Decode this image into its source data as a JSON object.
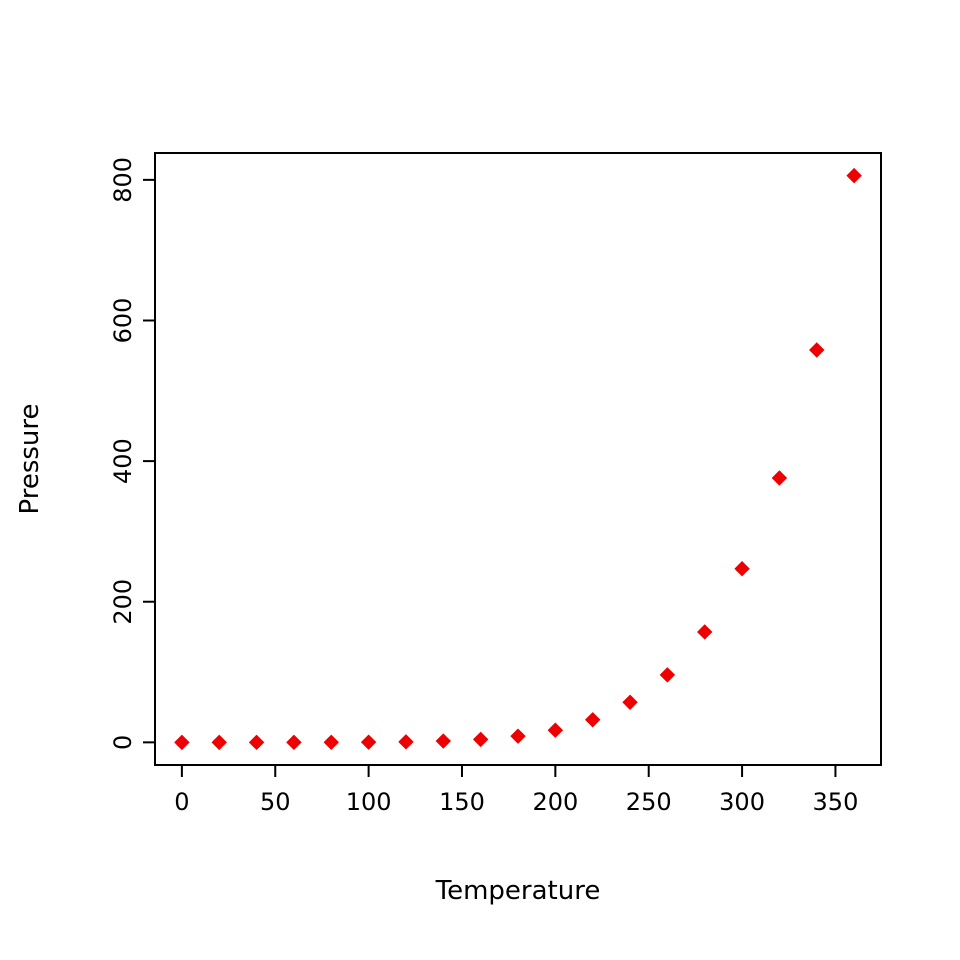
{
  "chart_data": {
    "type": "scatter",
    "title": "",
    "xlabel": "Temperature",
    "ylabel": "Pressure",
    "x": [
      0,
      20,
      40,
      60,
      80,
      100,
      120,
      140,
      160,
      180,
      200,
      220,
      240,
      260,
      280,
      300,
      320,
      340,
      360
    ],
    "y": [
      0.0002,
      0.0012,
      0.006,
      0.03,
      0.09,
      0.27,
      0.75,
      1.85,
      4.2,
      8.8,
      17.3,
      32.1,
      57,
      96,
      157,
      247,
      376,
      558,
      806
    ],
    "xticks": [
      0,
      50,
      100,
      150,
      200,
      250,
      300,
      350
    ],
    "yticks": [
      0,
      200,
      400,
      600,
      800
    ],
    "xlim": [
      -14.4,
      374.4
    ],
    "ylim": [
      -32.2,
      838.2
    ],
    "marker": "diamond",
    "marker_color": "#ee0000",
    "grid": false,
    "legend": null,
    "background": "#ffffff"
  }
}
